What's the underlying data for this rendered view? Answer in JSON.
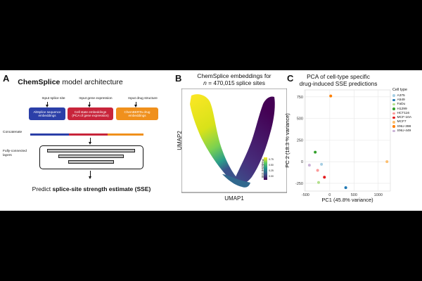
{
  "panel_a": {
    "letter": "A",
    "title_bold": "ChemSplice",
    "title_rest": " model architecture",
    "inputs": [
      {
        "label": "Input splice site",
        "box": "AltSplice sequence\nembeddings",
        "color": "#2b3fa8"
      },
      {
        "label": "Input gene expression",
        "box": "Cell state embeddings\n(PCA of gene expression)",
        "color": "#c8243a"
      },
      {
        "label": "Input drug structure",
        "box": "ChemBERTa drug\nembeddings",
        "color": "#f0901c"
      }
    ],
    "concatenate_label": "Concatenate",
    "fc_label_1": "Fully-connected",
    "fc_label_2": "layers",
    "predict_prefix": "Predict ",
    "predict_bold": "splice-site strength estimate (SSE)"
  },
  "panel_b": {
    "letter": "B",
    "title_line1": "ChemSplice embeddings for",
    "title_line2_italic": "n",
    "title_line2_rest": " = 470,015 splice sites",
    "xlabel": "UMAP1",
    "ylabel": "UMAP2",
    "colorbar_label": "Predicted SSE",
    "colorbar_ticks": [
      "0.75",
      "0.50",
      "0.25",
      "0.00"
    ]
  },
  "panel_c": {
    "letter": "C",
    "title_line1": "PCA of cell-type specific",
    "title_line2": "drug-induced SSE predictions",
    "legend_title": "Cell type",
    "palette": {
      "A375": "#a6cee3",
      "A549": "#1f78b4",
      "FaDu": "#b2df8a",
      "H1299": "#33a02c",
      "HCT116": "#fb9a99",
      "MCF-10A": "#e31a1c",
      "MCF7": "#fdbf6f",
      "SNU-398": "#ff7f00",
      "SNU-449": "#cab2d6"
    }
  },
  "chart_data": {
    "type": "scatter",
    "title": "PCA of cell-type specific drug-induced SSE predictions",
    "xlabel": "PC1 (45.8% variance)",
    "ylabel": "PC 2 (18.3 % variance)",
    "xlim": [
      -520,
      1250
    ],
    "ylim": [
      -340,
      830
    ],
    "xticks": [
      -500,
      0,
      500,
      1000
    ],
    "yticks": [
      -250,
      0,
      250,
      500,
      750
    ],
    "grid": true,
    "legend": "right",
    "series": [
      {
        "name": "A375",
        "x": [
          -170
        ],
        "y": [
          -30
        ],
        "color": "#a6cee3"
      },
      {
        "name": "A549",
        "x": [
          330
        ],
        "y": [
          -300
        ],
        "color": "#1f78b4"
      },
      {
        "name": "FaDu",
        "x": [
          -230
        ],
        "y": [
          -240
        ],
        "color": "#b2df8a"
      },
      {
        "name": "H1299",
        "x": [
          -300
        ],
        "y": [
          110
        ],
        "color": "#33a02c"
      },
      {
        "name": "HCT116",
        "x": [
          -250
        ],
        "y": [
          -100
        ],
        "color": "#fb9a99"
      },
      {
        "name": "MCF-10A",
        "x": [
          -110
        ],
        "y": [
          -180
        ],
        "color": "#e31a1c"
      },
      {
        "name": "MCF7",
        "x": [
          1180
        ],
        "y": [
          0
        ],
        "color": "#fdbf6f"
      },
      {
        "name": "SNU-398",
        "x": [
          20
        ],
        "y": [
          760
        ],
        "color": "#ff7f00"
      },
      {
        "name": "SNU-449",
        "x": [
          -420
        ],
        "y": [
          -40
        ],
        "color": "#cab2d6"
      }
    ]
  }
}
